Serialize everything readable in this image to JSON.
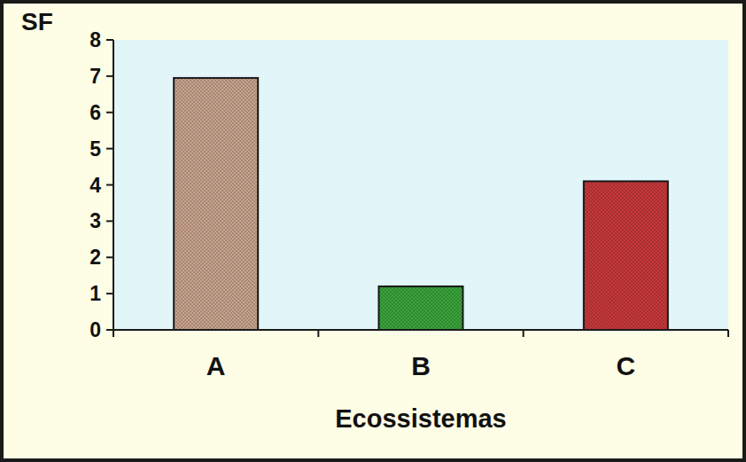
{
  "chart_data": {
    "type": "bar",
    "y_label": "SF",
    "x_label": "Ecossistemas",
    "categories": [
      "A",
      "B",
      "C"
    ],
    "values": [
      6.95,
      1.2,
      4.1
    ],
    "colors": [
      "#c9a48e",
      "#3aa53a",
      "#c8383a"
    ],
    "ylim": [
      0,
      8
    ],
    "yticks": [
      0,
      1,
      2,
      3,
      4,
      5,
      6,
      7,
      8
    ],
    "grid": false
  }
}
